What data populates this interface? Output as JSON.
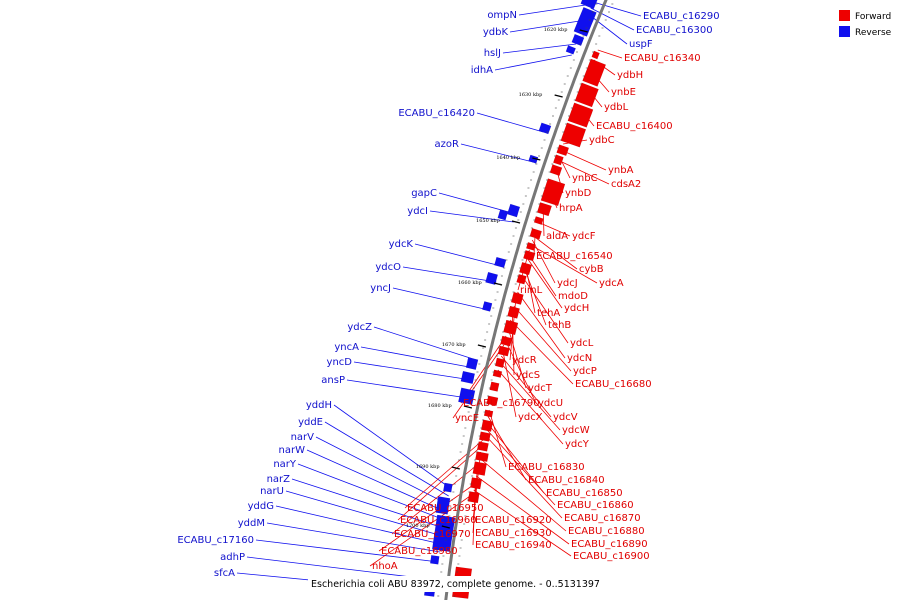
{
  "caption": "Escherichia coli ABU 83972, complete genome. - 0..5131397",
  "legend": [
    {
      "label": "Forward",
      "color": "#ee0000"
    },
    {
      "label": "Reverse",
      "color": "#1010ee"
    }
  ],
  "colors": {
    "forward": "#ee0000",
    "reverse": "#1010ee",
    "backbone": "#777777"
  },
  "ticks": [
    "1620 kbp",
    "1630 kbp",
    "1640 kbp",
    "1650 kbp",
    "1660 kbp",
    "1670 kbp",
    "1680 kbp",
    "1690 kbp",
    "1700 kbp",
    "1710 kbp"
  ],
  "reverse_labels": [
    "ompN",
    "ydbK",
    "hslJ",
    "idhA",
    "ECABU_c16290",
    "ECABU_c16300",
    "uspF",
    "ECABU_c16420",
    "azoR",
    "gapC",
    "ydcI",
    "ydcK",
    "ydcO",
    "yncJ",
    "ydcZ",
    "yncA",
    "yncD",
    "ansP",
    "yddH",
    "yddE",
    "narV",
    "narW",
    "narY",
    "narZ",
    "narU",
    "yddG",
    "yddM",
    "ECABU_c17160",
    "adhP",
    "sfcA"
  ],
  "forward_labels": [
    "ECABU_c16340",
    "ydbH",
    "ynbE",
    "ydbL",
    "ECABU_c16400",
    "ydbC",
    "ynbA",
    "ynbC",
    "cdsA2",
    "ynbD",
    "hrpA",
    "aldA",
    "ydcF",
    "ECABU_c16540",
    "cybB",
    "ydcJ",
    "ydcA",
    "rimL",
    "mdoD",
    "ydcH",
    "tehA",
    "tehB",
    "ydcL",
    "ydcN",
    "ydcR",
    "ydcP",
    "ydcS",
    "ECABU_c16680",
    "ydcT",
    "ECABU_c16790",
    "ydcU",
    "yncE",
    "ydcX",
    "ydcV",
    "ydcW",
    "ydcY",
    "ECABU_c16830",
    "ECABU_c16840",
    "ECABU_c16850",
    "ECABU_c16860",
    "ECABU_c16870",
    "ECABU_c16950",
    "ECABU_c16960",
    "ECABU_c16920",
    "ECABU_c16880",
    "ECABU_c16970",
    "ECABU_c16930",
    "ECABU_c16890",
    "ECABU_c16940",
    "ECABU_c16980",
    "ECABU_c16900",
    "nhoA"
  ]
}
